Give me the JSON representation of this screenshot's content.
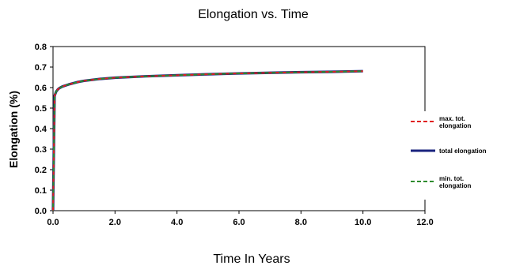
{
  "chart_data": {
    "type": "line",
    "title": "Elongation vs. Time",
    "xlabel": "Time In Years",
    "ylabel": "Elongation (%)",
    "xlim": [
      0,
      12
    ],
    "ylim": [
      0,
      0.8
    ],
    "x_ticks": [
      "0.0",
      "2.0",
      "4.0",
      "6.0",
      "8.0",
      "10.0",
      "12.0"
    ],
    "y_ticks": [
      "0.0",
      "0.1",
      "0.2",
      "0.3",
      "0.4",
      "0.5",
      "0.6",
      "0.7",
      "0.8"
    ],
    "grid": false,
    "legend_position": "right",
    "series": [
      {
        "name": "max. tot.\nelongation",
        "color": "#e02020",
        "style": "dashed",
        "x": [
          0,
          0.05,
          0.1,
          0.15,
          0.2,
          0.3,
          0.5,
          0.8,
          1,
          1.5,
          2,
          3,
          4,
          5,
          6,
          7,
          8,
          9,
          10
        ],
        "y": [
          0,
          0.56,
          0.58,
          0.59,
          0.597,
          0.605,
          0.615,
          0.627,
          0.633,
          0.642,
          0.648,
          0.655,
          0.66,
          0.665,
          0.669,
          0.672,
          0.675,
          0.677,
          0.68
        ]
      },
      {
        "name": "total elongation",
        "color": "#1a237e",
        "style": "solid",
        "x": [
          0,
          0.05,
          0.1,
          0.15,
          0.2,
          0.3,
          0.5,
          0.8,
          1,
          1.5,
          2,
          3,
          4,
          5,
          6,
          7,
          8,
          9,
          10
        ],
        "y": [
          0,
          0.56,
          0.58,
          0.59,
          0.597,
          0.605,
          0.615,
          0.627,
          0.633,
          0.642,
          0.648,
          0.655,
          0.66,
          0.665,
          0.669,
          0.672,
          0.675,
          0.677,
          0.68
        ]
      },
      {
        "name": "min. tot.\nelongation",
        "color": "#2e8b2e",
        "style": "dashed",
        "x": [
          0,
          0.05,
          0.1,
          0.15,
          0.2,
          0.3,
          0.5,
          0.8,
          1,
          1.5,
          2,
          3,
          4,
          5,
          6,
          7,
          8,
          9,
          10
        ],
        "y": [
          0,
          0.56,
          0.58,
          0.59,
          0.597,
          0.605,
          0.615,
          0.627,
          0.633,
          0.642,
          0.648,
          0.655,
          0.66,
          0.665,
          0.669,
          0.672,
          0.675,
          0.677,
          0.68
        ]
      }
    ]
  }
}
